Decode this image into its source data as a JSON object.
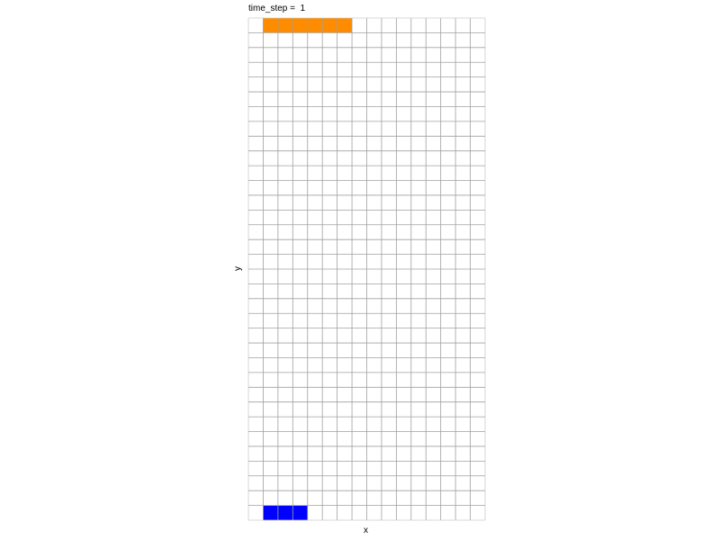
{
  "chart_data": {
    "type": "heatmap",
    "title": "time_step =  1",
    "xlabel": "x",
    "ylabel": "y",
    "grid": true,
    "n_cols": 16,
    "n_rows": 34,
    "grid_color": "#a0a0a0",
    "border_color": "#cccccc",
    "cells": [
      {
        "x": 1,
        "y": 33,
        "color": "#ff8c00"
      },
      {
        "x": 2,
        "y": 33,
        "color": "#ff8c00"
      },
      {
        "x": 3,
        "y": 33,
        "color": "#ff8c00"
      },
      {
        "x": 4,
        "y": 33,
        "color": "#ff8c00"
      },
      {
        "x": 5,
        "y": 33,
        "color": "#ff8c00"
      },
      {
        "x": 6,
        "y": 33,
        "color": "#ff8c00"
      },
      {
        "x": 1,
        "y": 0,
        "color": "#0000ff"
      },
      {
        "x": 2,
        "y": 0,
        "color": "#0000ff"
      },
      {
        "x": 3,
        "y": 0,
        "color": "#0000ff"
      }
    ]
  }
}
